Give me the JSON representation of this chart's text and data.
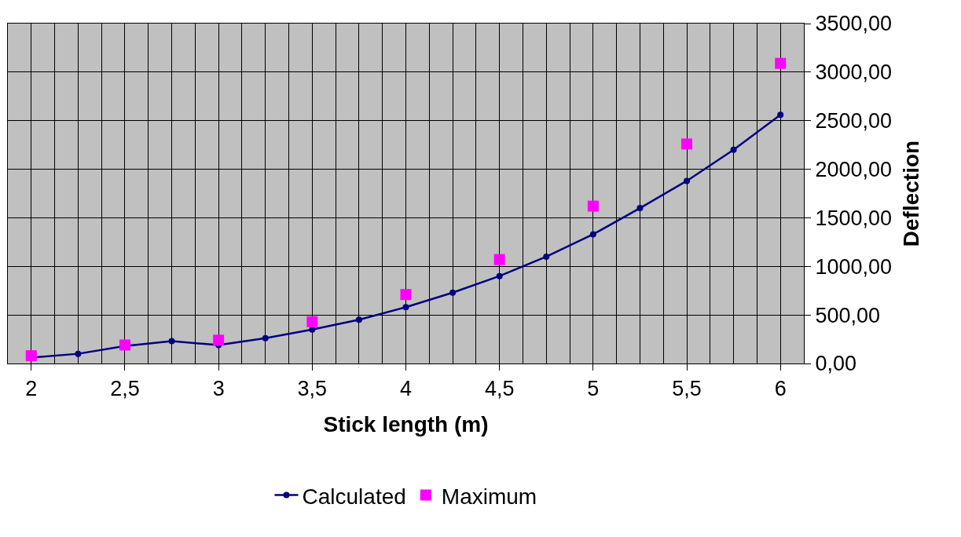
{
  "chart_data": {
    "type": "line",
    "xlabel": "Stick length (m)",
    "ylabel": "Deflection",
    "categories": [
      "2",
      null,
      "2,5",
      null,
      "3",
      null,
      "3,5",
      null,
      "4",
      null,
      "4,5",
      null,
      "5",
      null,
      "5,5",
      null,
      "6"
    ],
    "series": [
      {
        "name": "Calculated",
        "color": "#000080",
        "marker": "circle",
        "line_style": "solid",
        "values": [
          60,
          100,
          180,
          230,
          190,
          260,
          350,
          450,
          580,
          730,
          900,
          1100,
          1330,
          1600,
          1880,
          2200,
          2560
        ]
      },
      {
        "name": "Maximum",
        "type": "scatter",
        "color": "#ff00ff",
        "marker": "square",
        "values": [
          80,
          null,
          190,
          null,
          240,
          null,
          430,
          null,
          710,
          null,
          1070,
          null,
          1620,
          null,
          2260,
          null,
          3090
        ]
      }
    ],
    "ylim": [
      0,
      3500
    ],
    "yticks": [
      {
        "value": 0,
        "label": "0,00"
      },
      {
        "value": 500,
        "label": "500,00"
      },
      {
        "value": 1000,
        "label": "1000,00"
      },
      {
        "value": 1500,
        "label": "1500,00"
      },
      {
        "value": 2000,
        "label": "2000,00"
      },
      {
        "value": 2500,
        "label": "2500,00"
      },
      {
        "value": 3000,
        "label": "3000,00"
      },
      {
        "value": 3500,
        "label": "3500,00"
      }
    ],
    "grid": true,
    "legend": "bottom"
  }
}
